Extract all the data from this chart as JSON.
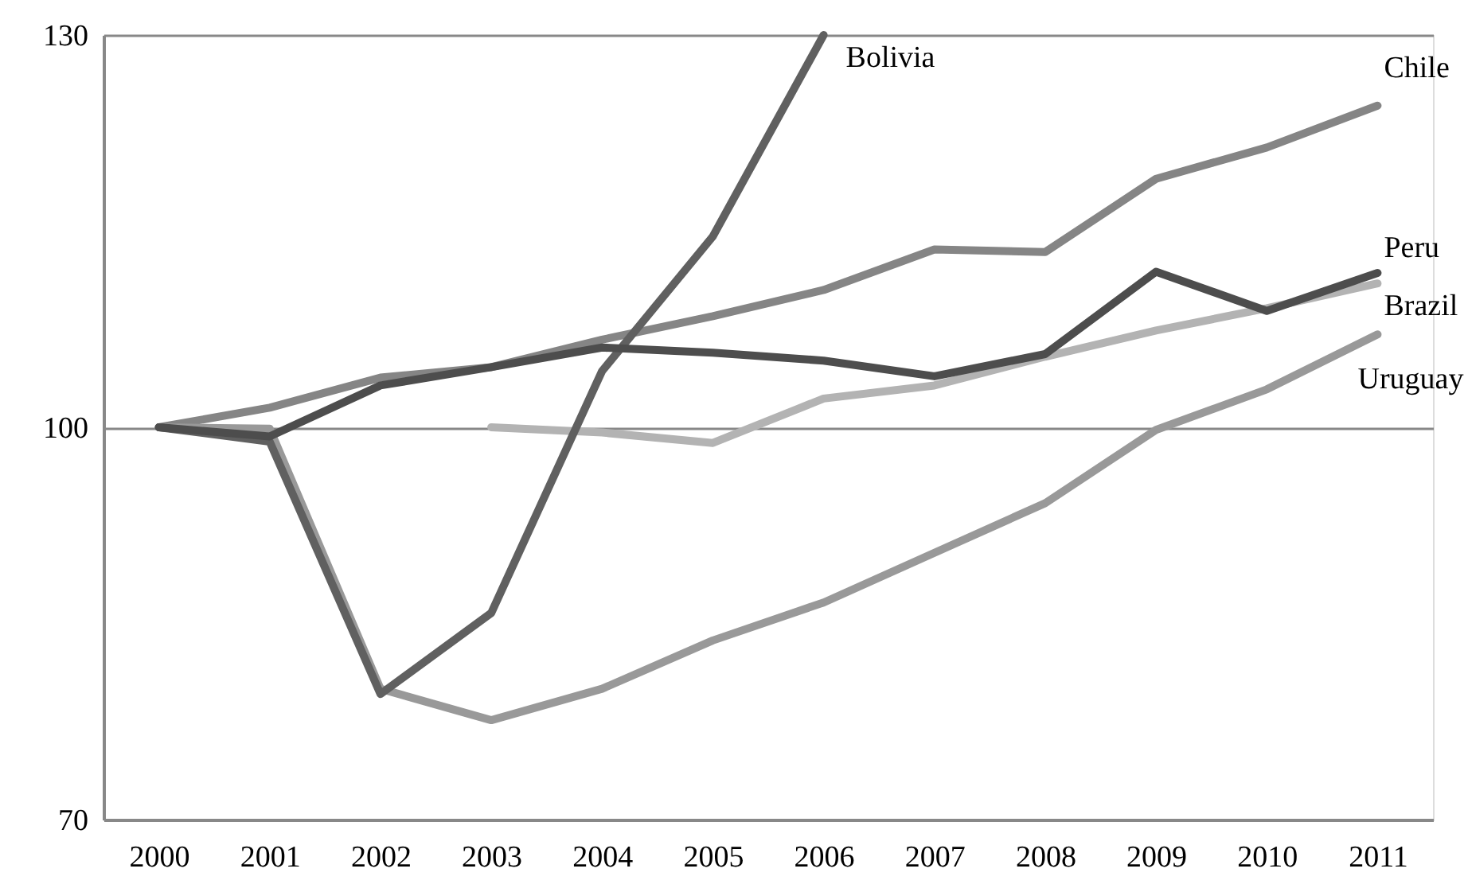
{
  "chart_data": {
    "type": "line",
    "categories": [
      "2000",
      "2001",
      "2002",
      "2003",
      "2004",
      "2005",
      "2006",
      "2007",
      "2008",
      "2009",
      "2010",
      "2011"
    ],
    "series": [
      {
        "name": "Chile",
        "color": "#858585",
        "values": [
          100,
          101.5,
          103.8,
          104.6,
          106.7,
          108.5,
          110.5,
          113.6,
          113.4,
          119,
          121.4,
          124.6
        ]
      },
      {
        "name": "Uruguay",
        "color": "#999999",
        "values": [
          100,
          99.9,
          80,
          77.6,
          80,
          83.7,
          86.6,
          90.4,
          94.2,
          99.8,
          102.9,
          107.1
        ]
      },
      {
        "name": "Brazil",
        "color": "#b3b3b3",
        "values": [
          null,
          null,
          null,
          100,
          99.6,
          98.8,
          102.2,
          103.2,
          105.4,
          107.4,
          109.1,
          111
        ]
      },
      {
        "name": "Bolivia",
        "color": "#606060",
        "values": [
          100,
          98.9,
          79.6,
          85.8,
          104.3,
          114.6,
          130,
          null,
          null,
          null,
          null,
          null
        ]
      },
      {
        "name": "Peru",
        "color": "#4d4d4d",
        "values": [
          100,
          99.3,
          103.2,
          104.6,
          106.1,
          105.7,
          105.1,
          103.9,
          105.6,
          111.9,
          108.9,
          111.8
        ]
      }
    ],
    "ylim": [
      70,
      130
    ],
    "yticks": [
      70,
      100,
      130
    ],
    "grid": "y",
    "legend": false,
    "marker": "none",
    "line_style": "solid"
  }
}
